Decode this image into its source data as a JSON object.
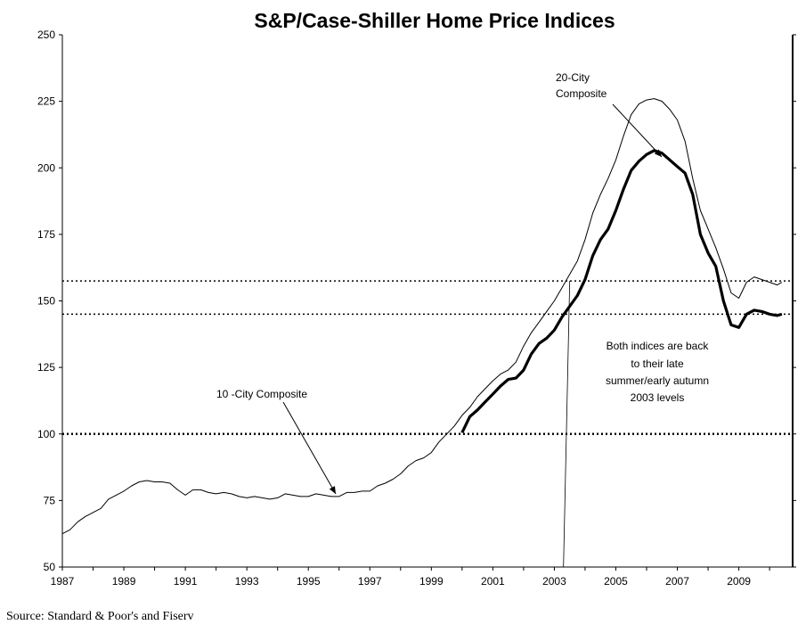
{
  "source": "Source: Standard & Poor's and Fiserv",
  "chart_data": {
    "type": "line",
    "title": "S&P/Case-Shiller Home Price Indices",
    "xlabel": "",
    "ylabel": "",
    "xlim": [
      1987,
      2010.5
    ],
    "ylim": [
      50,
      250
    ],
    "x_ticks": [
      1987,
      1989,
      1991,
      1993,
      1995,
      1997,
      1999,
      2001,
      2003,
      2005,
      2007,
      2009
    ],
    "y_ticks": [
      50,
      75,
      100,
      125,
      150,
      175,
      200,
      225,
      250
    ],
    "grid": false,
    "colors": {
      "line": "#000000",
      "reference": "#000000"
    },
    "series": [
      {
        "name": "10 -City Composite",
        "x": [
          1987,
          1987.25,
          1987.5,
          1987.75,
          1988,
          1988.25,
          1988.5,
          1988.75,
          1989,
          1989.25,
          1989.5,
          1989.75,
          1990,
          1990.25,
          1990.5,
          1990.75,
          1991,
          1991.25,
          1991.5,
          1991.75,
          1992,
          1992.25,
          1992.5,
          1992.75,
          1993,
          1993.25,
          1993.5,
          1993.75,
          1994,
          1994.25,
          1994.5,
          1994.75,
          1995,
          1995.25,
          1995.5,
          1995.75,
          1996,
          1996.25,
          1996.5,
          1996.75,
          1997,
          1997.25,
          1997.5,
          1997.75,
          1998,
          1998.25,
          1998.5,
          1998.75,
          1999,
          1999.25,
          1999.5,
          1999.75,
          2000,
          2000.25,
          2000.5,
          2000.75,
          2001,
          2001.25,
          2001.5,
          2001.75,
          2002,
          2002.25,
          2002.5,
          2002.75,
          2003,
          2003.25,
          2003.5,
          2003.75,
          2004,
          2004.25,
          2004.5,
          2004.75,
          2005,
          2005.25,
          2005.5,
          2005.75,
          2006,
          2006.25,
          2006.5,
          2006.75,
          2007,
          2007.25,
          2007.5,
          2007.75,
          2008,
          2008.25,
          2008.5,
          2008.75,
          2009,
          2009.25,
          2009.5,
          2009.75,
          2010,
          2010.25,
          2010.4
        ],
        "values": [
          62.5,
          64,
          67,
          69,
          70.5,
          72,
          75.5,
          77,
          78.5,
          80.5,
          82,
          82.5,
          82,
          82,
          81.5,
          79,
          77,
          79,
          79,
          78,
          77.5,
          78,
          77.5,
          76.5,
          76,
          76.5,
          76,
          75.5,
          76,
          77.5,
          77,
          76.5,
          76.5,
          77.5,
          77,
          76.5,
          76.5,
          78,
          78,
          78.5,
          78.5,
          80.5,
          81.5,
          83,
          85,
          88,
          90,
          91,
          93,
          97,
          100,
          103,
          107,
          110,
          114,
          117,
          120,
          122.5,
          124,
          127,
          133,
          138,
          142,
          146,
          150,
          155,
          160,
          165,
          173,
          183,
          190,
          196,
          203,
          212,
          220,
          224,
          225.5,
          226,
          225,
          222,
          218,
          210,
          196,
          184,
          177,
          170,
          162,
          153,
          151,
          157,
          159,
          158,
          157,
          156,
          157
        ],
        "line_style": "thin"
      },
      {
        "name": "20-City Composite",
        "x": [
          2000,
          2000.25,
          2000.5,
          2000.75,
          2001,
          2001.25,
          2001.5,
          2001.75,
          2002,
          2002.25,
          2002.5,
          2002.75,
          2003,
          2003.25,
          2003.5,
          2003.75,
          2004,
          2004.25,
          2004.5,
          2004.75,
          2005,
          2005.25,
          2005.5,
          2005.75,
          2006,
          2006.25,
          2006.5,
          2006.75,
          2007,
          2007.25,
          2007.5,
          2007.75,
          2008,
          2008.25,
          2008.5,
          2008.75,
          2009,
          2009.25,
          2009.5,
          2009.75,
          2010,
          2010.25,
          2010.4
        ],
        "values": [
          100.5,
          106.5,
          109,
          112,
          115,
          118,
          120.5,
          121,
          124,
          130,
          134,
          136,
          139,
          144,
          148,
          152,
          158,
          167,
          173,
          177,
          184,
          192,
          199,
          202.5,
          205,
          206.5,
          205.5,
          203,
          200.5,
          198,
          190,
          175,
          168,
          163,
          150,
          141,
          140,
          145,
          146.5,
          146,
          145,
          144.5,
          145
        ],
        "line_style": "thick"
      }
    ],
    "reference_lines": [
      {
        "type": "horizontal",
        "y": 100,
        "style": "dotted"
      },
      {
        "type": "horizontal",
        "y": 145,
        "style": "dotted"
      },
      {
        "type": "horizontal",
        "y": 157.5,
        "style": "dotted"
      },
      {
        "type": "vertical",
        "x": 2003.5,
        "style": "thin"
      }
    ],
    "annotations": [
      {
        "text_lines": [
          "20-City",
          "Composite"
        ],
        "anchor": "20-City Composite"
      },
      {
        "text_lines": [
          "10 -City Composite"
        ],
        "anchor": "10 -City Composite"
      },
      {
        "text_lines": [
          "Both indices are back",
          "to their late",
          "summer/early autumn",
          "2003 levels"
        ]
      }
    ]
  }
}
